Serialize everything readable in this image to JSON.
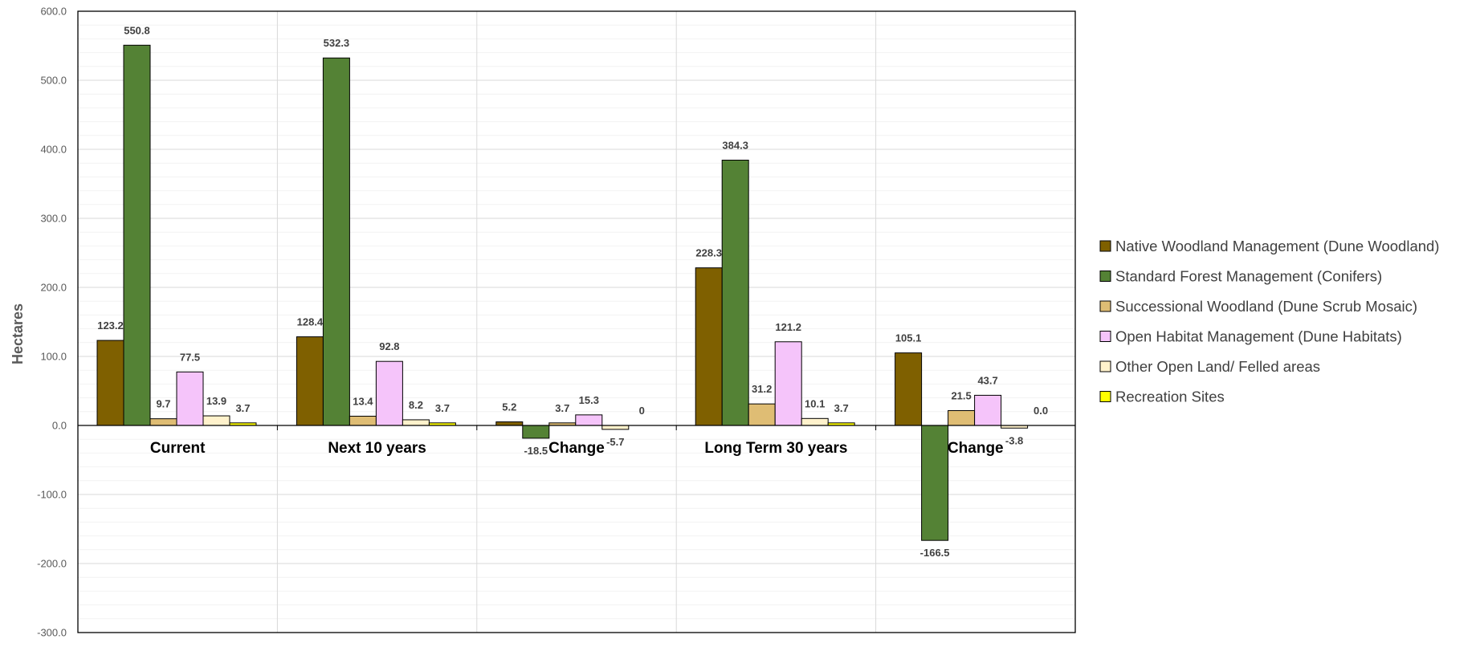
{
  "chart_data": {
    "type": "bar",
    "title": "",
    "xlabel": "",
    "ylabel": "Hectares",
    "ylim": [
      -300,
      600
    ],
    "ytick_step": 100,
    "yticks": [
      "600.0",
      "500.0",
      "400.0",
      "300.0",
      "200.0",
      "100.0",
      "0.0",
      "-100.0",
      "-200.0",
      "-300.0"
    ],
    "categories": [
      "Current",
      "Next 10 years",
      "Change",
      "Long Term 30 years",
      "Change"
    ],
    "legend_position": "right",
    "grid": true,
    "series": [
      {
        "name": "Native Woodland Management (Dune Woodland)",
        "color": "#7f6000",
        "values": [
          123.2,
          128.4,
          5.2,
          228.3,
          105.1
        ],
        "labels": [
          "123.2",
          "128.4",
          "5.2",
          "228.3",
          "105.1"
        ]
      },
      {
        "name": "Standard Forest Management (Conifers)",
        "color": "#548235",
        "values": [
          550.8,
          532.3,
          -18.5,
          384.3,
          -166.5
        ],
        "labels": [
          "550.8",
          "532.3",
          "-18.5",
          "384.3",
          "-166.5"
        ]
      },
      {
        "name": "Successional Woodland (Dune Scrub Mosaic)",
        "color": "#dfbd74",
        "values": [
          9.7,
          13.4,
          3.7,
          31.2,
          21.5
        ],
        "labels": [
          "9.7",
          "13.4",
          "3.7",
          "31.2",
          "21.5"
        ]
      },
      {
        "name": "Open Habitat Management (Dune Habitats)",
        "color": "#f5c4fa",
        "values": [
          77.5,
          92.8,
          15.3,
          121.2,
          43.7
        ],
        "labels": [
          "77.5",
          "92.8",
          "15.3",
          "121.2",
          "43.7"
        ]
      },
      {
        "name": "Other Open Land/ Felled areas",
        "color": "#fff2cc",
        "values": [
          13.9,
          8.2,
          -5.7,
          10.1,
          -3.8
        ],
        "labels": [
          "13.9",
          "8.2",
          "-5.7",
          "10.1",
          "-3.8"
        ]
      },
      {
        "name": "Recreation Sites",
        "color": "#ffff00",
        "values": [
          3.7,
          3.7,
          0,
          3.7,
          0
        ],
        "labels": [
          "3.7",
          "3.7",
          "0",
          "3.7",
          "0.0"
        ]
      }
    ]
  }
}
